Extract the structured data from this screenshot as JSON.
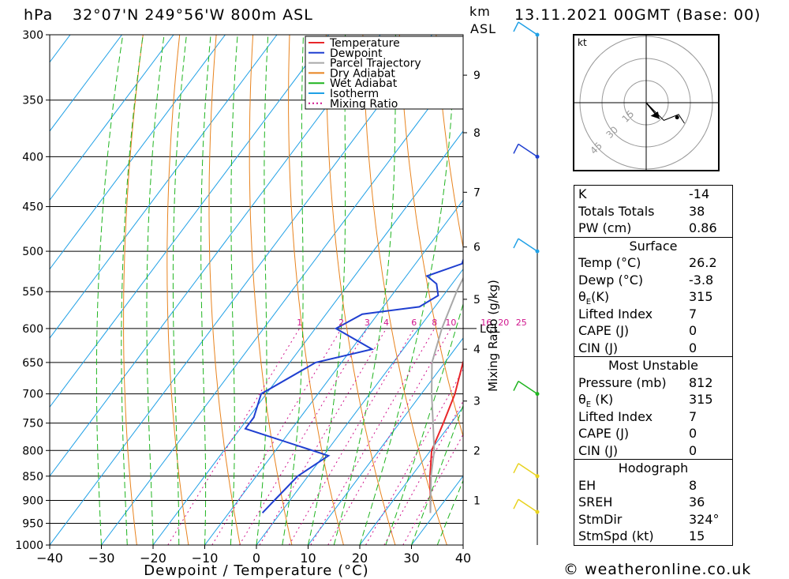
{
  "header": {
    "left_unit": "hPa",
    "location": "32°07'N  249°56'W  800m  ASL",
    "km_label": "km",
    "asl_label": "ASL",
    "datetime": "13.11.2021  00GMT  (Base: 00)"
  },
  "footer": {
    "credit": "© weatheronline.co.uk"
  },
  "colors": {
    "temperature": "#e8272a",
    "dewpoint": "#1f3fd0",
    "parcel": "#a8a8a8",
    "dry_adiabat": "#e8831e",
    "wet_adiabat": "#1fb41f",
    "isotherm": "#1fa0e6",
    "mixing_ratio": "#d0148c"
  },
  "chart_data": {
    "type": "line",
    "subtype": "skew-T log-P sounding",
    "xlabel": "Dewpoint / Temperature (°C)",
    "ylabel": "hPa",
    "xlim": [
      -40,
      40
    ],
    "ylim": [
      1000,
      300
    ],
    "y_scale": "log",
    "grid": true,
    "legend_placement": "top-right",
    "x_ticks": [
      "−40",
      "−30",
      "−20",
      "−10",
      "0",
      "10",
      "20",
      "30",
      "40"
    ],
    "pressure_levels": [
      300,
      350,
      400,
      450,
      500,
      550,
      600,
      650,
      700,
      750,
      800,
      850,
      900,
      950,
      1000
    ],
    "legend": [
      "Temperature",
      "Dewpoint",
      "Parcel Trajectory",
      "Dry Adiabat",
      "Wet Adiabat",
      "Isotherm",
      "Mixing Ratio"
    ],
    "series": [
      {
        "name": "Temperature",
        "points": [
          [
            927,
            29
          ],
          [
            900,
            27.2
          ],
          [
            850,
            23.6
          ],
          [
            800,
            20.2
          ],
          [
            750,
            18.5
          ],
          [
            700,
            16.5
          ],
          [
            650,
            13.5
          ],
          [
            600,
            10.8
          ],
          [
            560,
            9.0
          ],
          [
            530,
            7.5
          ],
          [
            500,
            5.0
          ],
          [
            450,
            4.0
          ],
          [
            400,
            3.0
          ],
          [
            350,
            1.5
          ],
          [
            300,
            1.0
          ]
        ]
      },
      {
        "name": "Dewpoint",
        "points": [
          [
            927,
            -3.5
          ],
          [
            900,
            -3.0
          ],
          [
            850,
            -2.0
          ],
          [
            810,
            1.0
          ],
          [
            760,
            -19
          ],
          [
            740,
            -19
          ],
          [
            700,
            -21
          ],
          [
            650,
            -15
          ],
          [
            630,
            -6
          ],
          [
            600,
            -16
          ],
          [
            580,
            -13
          ],
          [
            570,
            -3
          ],
          [
            555,
            -1
          ],
          [
            540,
            -3
          ],
          [
            530,
            -6
          ],
          [
            515,
            -1
          ],
          [
            500,
            -2
          ],
          [
            490,
            -3
          ],
          [
            480,
            -5
          ],
          [
            470,
            0
          ],
          [
            455,
            3.5
          ],
          [
            430,
            1.8
          ],
          [
            410,
            1.5
          ],
          [
            400,
            -3.5
          ],
          [
            380,
            0
          ],
          [
            365,
            1.0
          ],
          [
            350,
            6.5
          ],
          [
            340,
            6.0
          ],
          [
            320,
            7.0
          ],
          [
            300,
            7.5
          ]
        ]
      },
      {
        "name": "Parcel Trajectory",
        "points": [
          [
            927,
            29
          ],
          [
            850,
            23.8
          ],
          [
            800,
            20.7
          ],
          [
            750,
            16.5
          ],
          [
            700,
            12.0
          ],
          [
            650,
            7.5
          ],
          [
            600,
            4.5
          ],
          [
            550,
            2.0
          ],
          [
            500,
            0
          ],
          [
            450,
            -1.5
          ],
          [
            400,
            -2.8
          ],
          [
            350,
            -3.0
          ],
          [
            300,
            -2.0
          ]
        ]
      }
    ],
    "km_ticks": [
      {
        "km": 1,
        "p": 900
      },
      {
        "km": 2,
        "p": 800
      },
      {
        "km": 3,
        "p": 712
      },
      {
        "km": 4,
        "p": 630
      },
      {
        "km": 5,
        "p": 560
      },
      {
        "km": 6,
        "p": 495
      },
      {
        "km": 7,
        "p": 435
      },
      {
        "km": 8,
        "p": 378
      },
      {
        "km": 9,
        "p": 330
      }
    ],
    "lcl_label": "LCL",
    "lcl_pressure": 600,
    "mixing_ratio_label": "Mixing Ratio (g/kg)",
    "mixing_ratio_values": [
      "1",
      "2",
      "3",
      "4",
      "6",
      "8",
      "10",
      "16",
      "20",
      "25"
    ],
    "wind_barbs": [
      {
        "p": 300,
        "color": "#1fa0e6"
      },
      {
        "p": 400,
        "color": "#1f3fd0"
      },
      {
        "p": 500,
        "color": "#1fa0e6"
      },
      {
        "p": 700,
        "color": "#1fb41f"
      },
      {
        "p": 850,
        "color": "#e8d21e"
      },
      {
        "p": 925,
        "color": "#e8d21e"
      }
    ],
    "hodograph": {
      "unit": "kt",
      "rings": [
        "15",
        "30",
        "45"
      ],
      "points": [
        [
          0,
          0
        ],
        [
          5,
          -5
        ],
        [
          12,
          -12
        ],
        [
          22,
          -8
        ],
        [
          26,
          -14
        ]
      ]
    }
  },
  "indices": {
    "k_label": "K",
    "k_value": "-14",
    "tt_label": "Totals Totals",
    "tt_value": "38",
    "pw_label": "PW (cm)",
    "pw_value": "0.86",
    "surface": {
      "title": "Surface",
      "temp_label": "Temp (°C)",
      "temp_value": "26.2",
      "dewp_label": "Dewp (°C)",
      "dewp_value": "-3.8",
      "thetae_label": "θ",
      "thetae_sub": "E",
      "thetae_unit": "(K)",
      "thetae_value": "315",
      "li_label": "Lifted Index",
      "li_value": "7",
      "cape_label": "CAPE (J)",
      "cape_value": "0",
      "cin_label": "CIN (J)",
      "cin_value": "0"
    },
    "most_unstable": {
      "title": "Most Unstable",
      "pressure_label": "Pressure (mb)",
      "pressure_value": "812",
      "thetae_label": "θ",
      "thetae_sub": "E",
      "thetae_unit": " (K)",
      "thetae_value": "315",
      "li_label": "Lifted Index",
      "li_value": "7",
      "cape_label": "CAPE (J)",
      "cape_value": "0",
      "cin_label": "CIN (J)",
      "cin_value": "0"
    },
    "hodograph_box": {
      "title": "Hodograph",
      "eh_label": "EH",
      "eh_value": "8",
      "sreh_label": "SREH",
      "sreh_value": "36",
      "stmdir_label": "StmDir",
      "stmdir_value": "324°",
      "stmspd_label": "StmSpd (kt)",
      "stmspd_value": "15"
    }
  }
}
